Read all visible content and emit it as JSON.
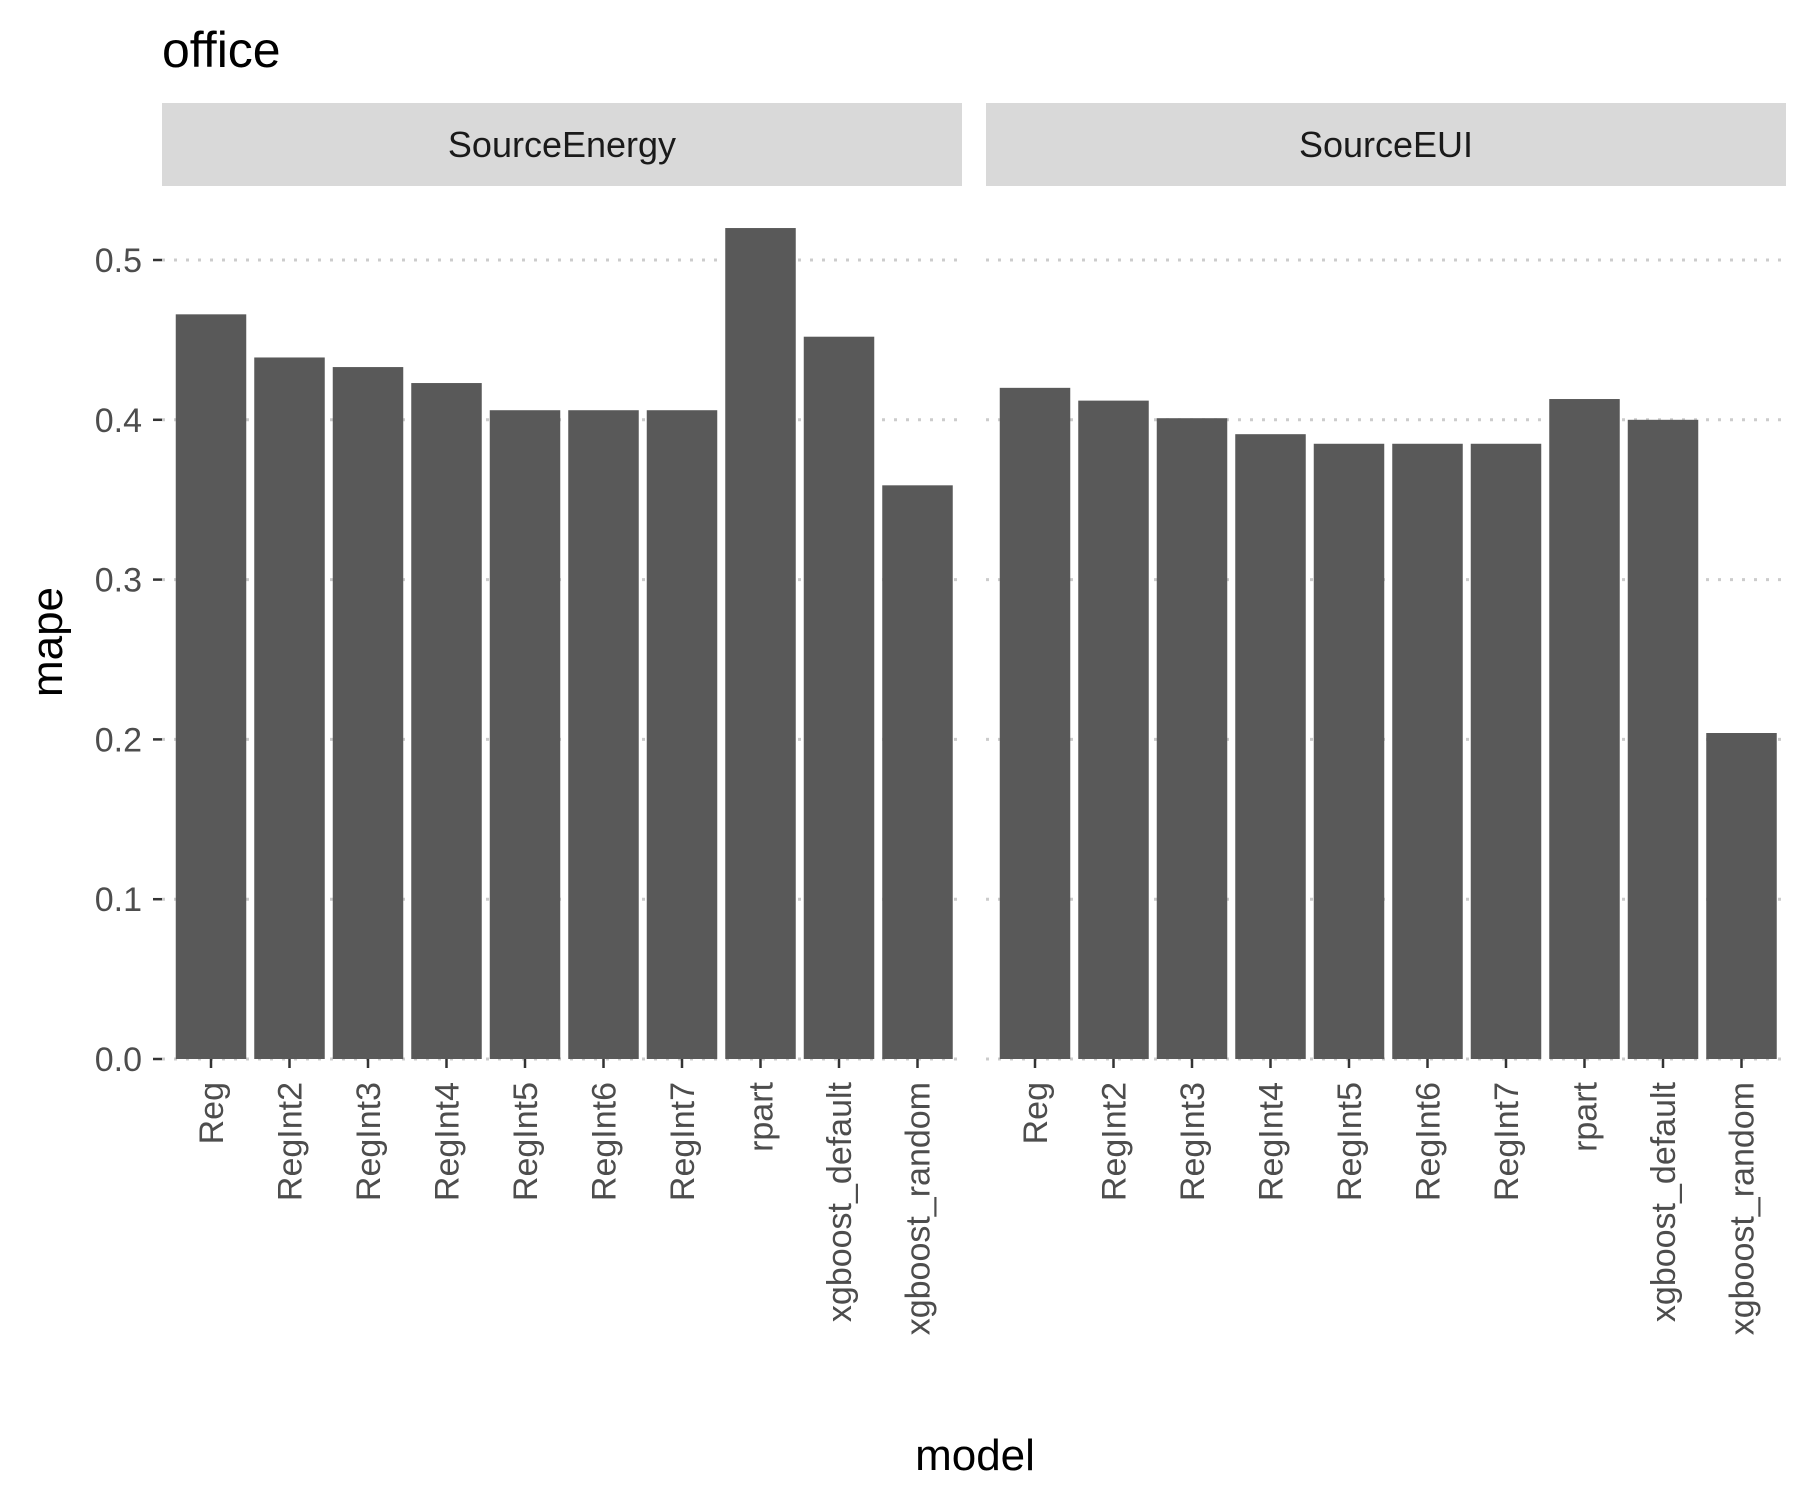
{
  "chart_data": {
    "type": "bar",
    "title": "office",
    "xlabel": "model",
    "ylabel": "mape",
    "ylim": [
      0,
      0.53
    ],
    "yticks": [
      "0.0",
      "0.1",
      "0.2",
      "0.3",
      "0.4",
      "0.5"
    ],
    "grid": "horizontal dotted",
    "bar_color": "#595959",
    "strip_color": "#d9d9d9",
    "grid_color": "#cccccc",
    "categories": [
      "Reg",
      "RegInt2",
      "RegInt3",
      "RegInt4",
      "RegInt5",
      "RegInt6",
      "RegInt7",
      "rpart",
      "xgboost_default",
      "xgboost_random"
    ],
    "panels": [
      {
        "name": "SourceEnergy",
        "values": [
          0.466,
          0.439,
          0.433,
          0.423,
          0.406,
          0.406,
          0.406,
          0.52,
          0.452,
          0.359
        ]
      },
      {
        "name": "SourceEUI",
        "values": [
          0.42,
          0.412,
          0.401,
          0.391,
          0.385,
          0.385,
          0.385,
          0.413,
          0.4,
          0.204
        ]
      }
    ]
  }
}
